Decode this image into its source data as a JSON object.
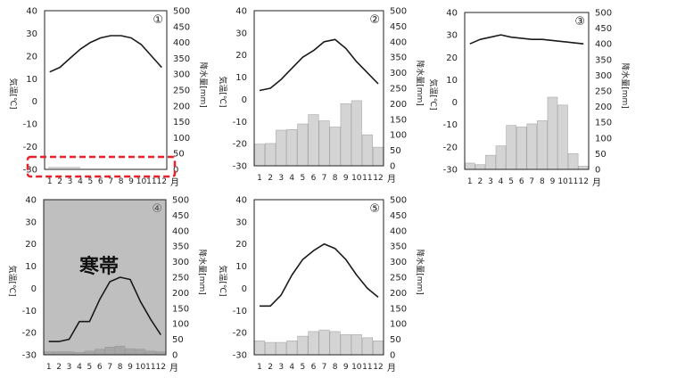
{
  "unit_label": "月",
  "axis_label_left": "気温[℃]",
  "axis_label_right": "降水量[mm]",
  "colors": {
    "temperature_line": "#1a1a1a",
    "precip_bar_fill": "#d4d4d4",
    "precip_bar_stroke": "#a8a8a8",
    "frame": "#222222",
    "highlight_box": "#e8202a",
    "shaded_panel": "#bfbfbf",
    "shaded_bar_fill": "#a6a6a6"
  },
  "chart_data": [
    {
      "type": "bar+line",
      "label": "①",
      "categories": [
        "1",
        "2",
        "3",
        "4",
        "5",
        "6",
        "7",
        "8",
        "9",
        "10",
        "11",
        "12"
      ],
      "temperature_ylim": [
        -30,
        40
      ],
      "temperature_ticks": [
        40,
        30,
        20,
        10,
        0,
        -10,
        -20,
        -30
      ],
      "precip_ylim": [
        0,
        500
      ],
      "precip_ticks": [
        500,
        450,
        400,
        350,
        300,
        250,
        200,
        150,
        100,
        50,
        0
      ],
      "temperature": [
        13,
        15,
        19,
        23,
        26,
        28,
        29,
        29,
        28,
        25,
        20,
        15
      ],
      "precipitation": [
        0,
        0,
        0,
        0,
        0,
        0,
        0,
        0,
        0,
        0,
        0,
        0
      ],
      "highlight_precip": true,
      "shaded": false
    },
    {
      "type": "bar+line",
      "label": "②",
      "categories": [
        "1",
        "2",
        "3",
        "4",
        "5",
        "6",
        "7",
        "8",
        "9",
        "10",
        "11",
        "12"
      ],
      "temperature_ylim": [
        -30,
        40
      ],
      "temperature_ticks": [
        40,
        30,
        20,
        10,
        0,
        -10,
        -20,
        -30
      ],
      "precip_ylim": [
        0,
        500
      ],
      "precip_ticks": [
        500,
        450,
        400,
        350,
        300,
        250,
        200,
        150,
        100,
        50,
        0
      ],
      "temperature": [
        4,
        5,
        9,
        14,
        19,
        22,
        26,
        27,
        23,
        17,
        12,
        7
      ],
      "precipitation": [
        70,
        72,
        115,
        117,
        135,
        165,
        145,
        125,
        200,
        210,
        100,
        60
      ],
      "highlight_precip": false,
      "shaded": false
    },
    {
      "type": "bar+line",
      "label": "③",
      "categories": [
        "1",
        "2",
        "3",
        "4",
        "5",
        "6",
        "7",
        "8",
        "9",
        "10",
        "11",
        "12"
      ],
      "temperature_ylim": [
        -30,
        40
      ],
      "temperature_ticks": [
        40,
        30,
        20,
        10,
        0,
        -10,
        -20,
        -30
      ],
      "precip_ylim": [
        0,
        500
      ],
      "precip_ticks": [
        500,
        450,
        400,
        350,
        300,
        250,
        200,
        150,
        100,
        50,
        0
      ],
      "temperature": [
        26,
        28,
        29,
        30,
        29,
        28.5,
        28,
        28,
        27.5,
        27,
        26.5,
        26
      ],
      "precipitation": [
        20,
        15,
        45,
        75,
        140,
        135,
        145,
        155,
        230,
        205,
        50,
        10
      ],
      "highlight_precip": false,
      "shaded": false
    },
    {
      "type": "bar+line",
      "label": "④",
      "categories": [
        "1",
        "2",
        "3",
        "4",
        "5",
        "6",
        "7",
        "8",
        "9",
        "10",
        "11",
        "12"
      ],
      "temperature_ylim": [
        -30,
        40
      ],
      "temperature_ticks": [
        40,
        30,
        20,
        10,
        0,
        -10,
        -20,
        -30
      ],
      "precip_ylim": [
        0,
        500
      ],
      "precip_ticks": [
        500,
        450,
        400,
        350,
        300,
        250,
        200,
        150,
        100,
        50,
        0
      ],
      "temperature": [
        -24,
        -24,
        -23,
        -15,
        -15,
        -5,
        3,
        5,
        4,
        -6,
        -14,
        -21
      ],
      "precipitation": [
        10,
        10,
        10,
        8,
        12,
        18,
        25,
        28,
        20,
        18,
        12,
        10
      ],
      "highlight_precip": false,
      "shaded": true,
      "annotation": "寒帯"
    },
    {
      "type": "bar+line",
      "label": "⑤",
      "categories": [
        "1",
        "2",
        "3",
        "4",
        "5",
        "6",
        "7",
        "8",
        "9",
        "10",
        "11",
        "12"
      ],
      "temperature_ylim": [
        -30,
        40
      ],
      "temperature_ticks": [
        40,
        30,
        20,
        10,
        0,
        -10,
        -20,
        -30
      ],
      "precip_ylim": [
        0,
        500
      ],
      "precip_ticks": [
        500,
        450,
        400,
        350,
        300,
        250,
        200,
        150,
        100,
        50,
        0
      ],
      "temperature": [
        -8,
        -8,
        -3,
        6,
        13,
        17,
        20,
        18,
        13,
        6,
        0,
        -4
      ],
      "precipitation": [
        45,
        40,
        40,
        45,
        60,
        75,
        80,
        75,
        65,
        65,
        55,
        45
      ],
      "highlight_precip": false,
      "shaded": false
    }
  ]
}
